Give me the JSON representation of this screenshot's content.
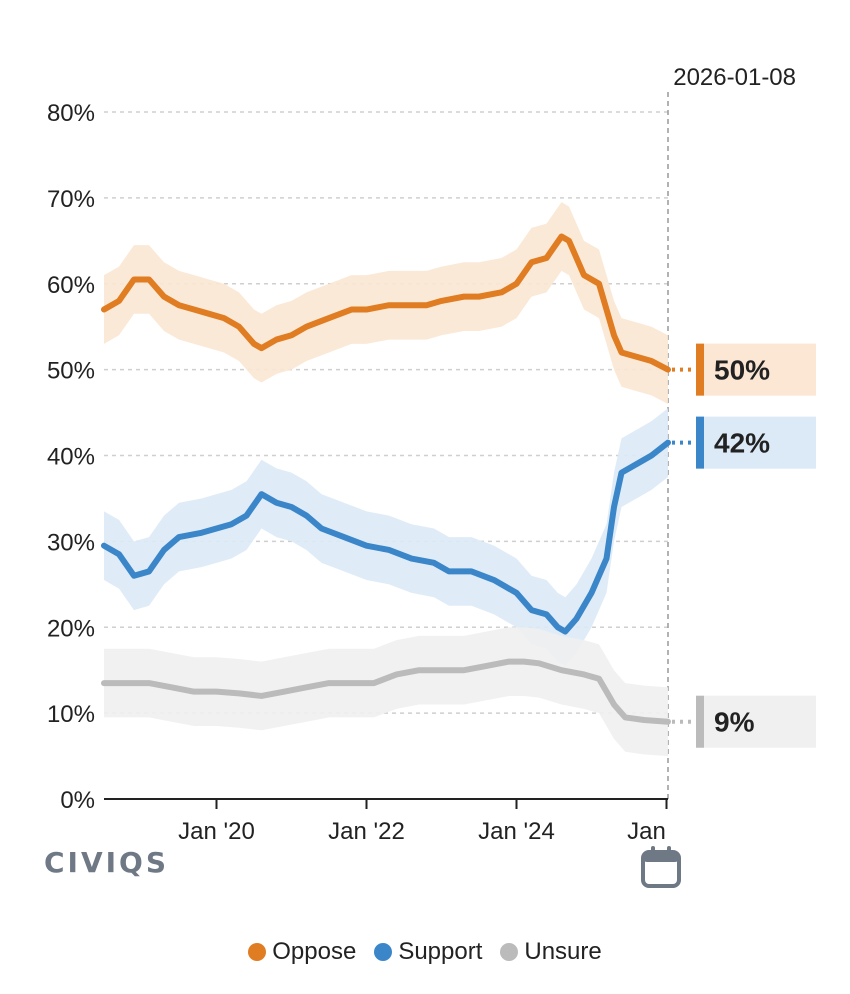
{
  "chart_data": {
    "type": "line",
    "date_label": "2026-01-08",
    "ylim": [
      0,
      80
    ],
    "y_ticks": [
      "0%",
      "10%",
      "20%",
      "30%",
      "40%",
      "50%",
      "60%",
      "70%",
      "80%"
    ],
    "y_tick_values": [
      0,
      10,
      20,
      30,
      40,
      50,
      60,
      70,
      80
    ],
    "xlim": [
      2018.5,
      2026.02
    ],
    "x_ticks": [
      {
        "label": "Jan '20",
        "value": 2020.0
      },
      {
        "label": "Jan '22",
        "value": 2022.0
      },
      {
        "label": "Jan '24",
        "value": 2024.0
      },
      {
        "label": "Jan",
        "value": 2026.0
      }
    ],
    "current_x": 2026.02,
    "band_halfwidth": 4,
    "series": [
      {
        "name": "Oppose",
        "color": "#e07c22",
        "band_color": "#fbe7d3",
        "end_label": "50%",
        "points": [
          [
            2018.5,
            57
          ],
          [
            2018.7,
            58
          ],
          [
            2018.9,
            60.5
          ],
          [
            2019.1,
            60.5
          ],
          [
            2019.3,
            58.5
          ],
          [
            2019.5,
            57.5
          ],
          [
            2019.7,
            57
          ],
          [
            2019.9,
            56.5
          ],
          [
            2020.1,
            56
          ],
          [
            2020.3,
            55
          ],
          [
            2020.5,
            53
          ],
          [
            2020.6,
            52.5
          ],
          [
            2020.8,
            53.5
          ],
          [
            2021.0,
            54
          ],
          [
            2021.2,
            55
          ],
          [
            2021.5,
            56
          ],
          [
            2021.8,
            57
          ],
          [
            2022.0,
            57
          ],
          [
            2022.3,
            57.5
          ],
          [
            2022.5,
            57.5
          ],
          [
            2022.8,
            57.5
          ],
          [
            2023.0,
            58
          ],
          [
            2023.3,
            58.5
          ],
          [
            2023.5,
            58.5
          ],
          [
            2023.8,
            59
          ],
          [
            2024.0,
            60
          ],
          [
            2024.2,
            62.5
          ],
          [
            2024.4,
            63
          ],
          [
            2024.6,
            65.5
          ],
          [
            2024.7,
            65
          ],
          [
            2024.9,
            61
          ],
          [
            2025.1,
            60
          ],
          [
            2025.3,
            54
          ],
          [
            2025.4,
            52
          ],
          [
            2025.6,
            51.5
          ],
          [
            2025.8,
            51
          ],
          [
            2026.02,
            50
          ]
        ]
      },
      {
        "name": "Support",
        "color": "#3b86c9",
        "band_color": "#dbeaf6",
        "end_label": "42%",
        "points": [
          [
            2018.5,
            29.5
          ],
          [
            2018.7,
            28.5
          ],
          [
            2018.9,
            26
          ],
          [
            2019.1,
            26.5
          ],
          [
            2019.3,
            29
          ],
          [
            2019.5,
            30.5
          ],
          [
            2019.8,
            31
          ],
          [
            2020.0,
            31.5
          ],
          [
            2020.2,
            32
          ],
          [
            2020.4,
            33
          ],
          [
            2020.6,
            35.5
          ],
          [
            2020.8,
            34.5
          ],
          [
            2021.0,
            34
          ],
          [
            2021.2,
            33
          ],
          [
            2021.4,
            31.5
          ],
          [
            2021.7,
            30.5
          ],
          [
            2022.0,
            29.5
          ],
          [
            2022.3,
            29
          ],
          [
            2022.6,
            28
          ],
          [
            2022.9,
            27.5
          ],
          [
            2023.1,
            26.5
          ],
          [
            2023.4,
            26.5
          ],
          [
            2023.7,
            25.5
          ],
          [
            2024.0,
            24
          ],
          [
            2024.2,
            22
          ],
          [
            2024.4,
            21.5
          ],
          [
            2024.55,
            20
          ],
          [
            2024.65,
            19.5
          ],
          [
            2024.8,
            21
          ],
          [
            2025.0,
            24
          ],
          [
            2025.1,
            26
          ],
          [
            2025.2,
            28
          ],
          [
            2025.3,
            34
          ],
          [
            2025.4,
            38
          ],
          [
            2025.6,
            39
          ],
          [
            2025.8,
            40
          ],
          [
            2026.02,
            41.5
          ]
        ]
      },
      {
        "name": "Unsure",
        "color": "#bbbbbb",
        "band_color": "#f0f0f0",
        "end_label": "9%",
        "points": [
          [
            2018.5,
            13.5
          ],
          [
            2018.8,
            13.5
          ],
          [
            2019.1,
            13.5
          ],
          [
            2019.4,
            13
          ],
          [
            2019.7,
            12.5
          ],
          [
            2020.0,
            12.5
          ],
          [
            2020.3,
            12.3
          ],
          [
            2020.6,
            12
          ],
          [
            2020.9,
            12.5
          ],
          [
            2021.2,
            13
          ],
          [
            2021.5,
            13.5
          ],
          [
            2021.8,
            13.5
          ],
          [
            2022.1,
            13.5
          ],
          [
            2022.4,
            14.5
          ],
          [
            2022.7,
            15
          ],
          [
            2023.0,
            15
          ],
          [
            2023.3,
            15
          ],
          [
            2023.6,
            15.5
          ],
          [
            2023.9,
            16
          ],
          [
            2024.1,
            16
          ],
          [
            2024.3,
            15.8
          ],
          [
            2024.6,
            15
          ],
          [
            2024.9,
            14.5
          ],
          [
            2025.1,
            14
          ],
          [
            2025.3,
            11
          ],
          [
            2025.45,
            9.5
          ],
          [
            2025.7,
            9.2
          ],
          [
            2026.02,
            9
          ]
        ]
      }
    ],
    "legend": [
      "Oppose",
      "Support",
      "Unsure"
    ]
  },
  "brand": {
    "logo_text": "CIVIQS"
  },
  "calendar_icon": "calendar-icon"
}
